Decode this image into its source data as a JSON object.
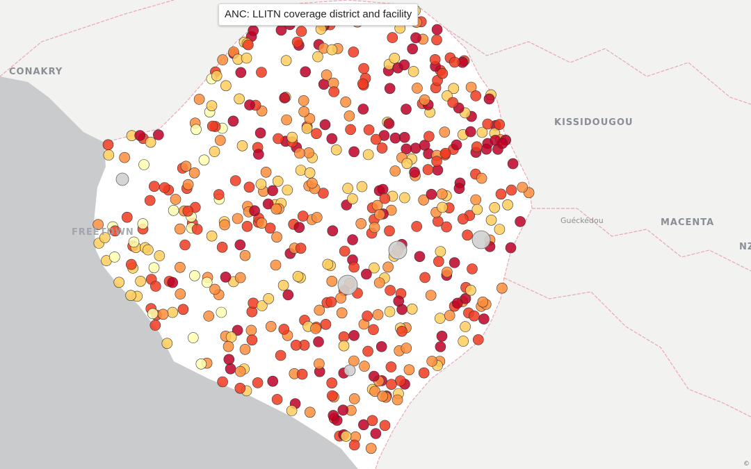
{
  "title": "ANC: LLITN coverage district and facility",
  "places": [
    {
      "name": "CONAKRY",
      "kind": "big"
    },
    {
      "name": "KISSIDOUGOU",
      "kind": "big"
    },
    {
      "name": "MACENTA",
      "kind": "big"
    },
    {
      "name": "Guéckédou",
      "kind": "small"
    },
    {
      "name": "FREETOWN",
      "kind": "big"
    },
    {
      "name": "NZ",
      "kind": "big"
    }
  ],
  "attribution": "©",
  "colors": {
    "ocean": "#c9cbcd",
    "land_outside": "#f2f2f0",
    "country": "#ffffff",
    "border": "#e9a7b3",
    "no_data": "#d0d0d0",
    "scale": [
      "#ffffb2",
      "#fecc5c",
      "#fd8d3c",
      "#f03b20",
      "#bd0026"
    ]
  }
}
